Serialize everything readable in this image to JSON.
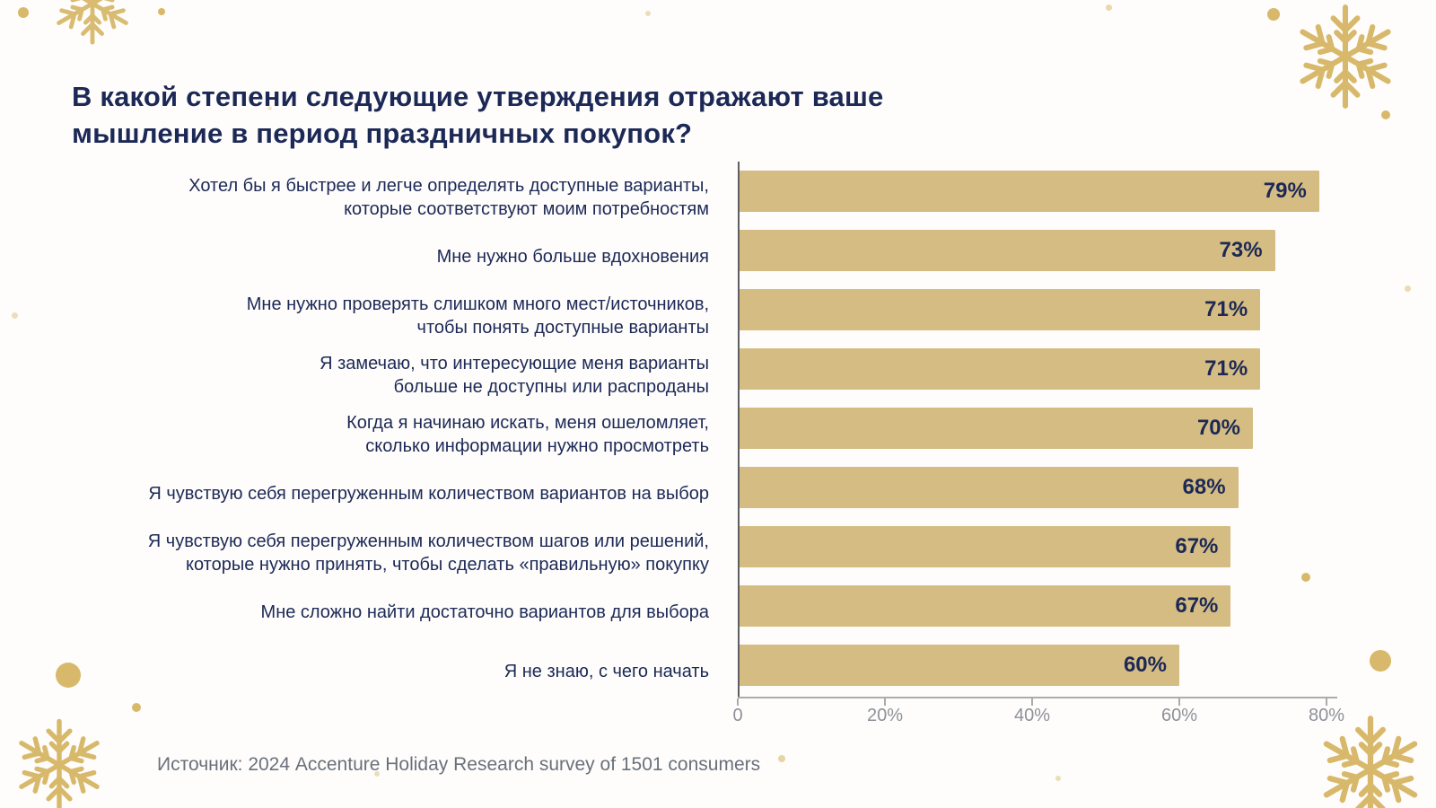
{
  "title": "В какой степени следующие утверждения отражают ваше\nмышление в период праздничных покупок?",
  "source": "Источник: 2024 Accenture Holiday Research survey of 1501 consumers",
  "colors": {
    "navy": "#1c2957",
    "gold": "#d8b96b",
    "bar": "#d5bc82",
    "axis_gray": "#8d9199",
    "text_gray": "#6a707b",
    "background": "#fefdfb"
  },
  "chart_data": {
    "type": "bar",
    "orientation": "horizontal",
    "title": "В какой степени следующие утверждения отражают ваше мышление в период праздничных покупок?",
    "categories": [
      "Хотел бы я быстрее и легче определять доступные варианты,\nкоторые соответствуют моим потребностям",
      "Мне нужно больше вдохновения",
      "Мне нужно проверять слишком много мест/источников,\nчтобы понять доступные варианты",
      "Я замечаю, что интересующие меня варианты\nбольше не доступны или распроданы",
      "Когда я начинаю искать, меня ошеломляет,\nсколько информации нужно просмотреть",
      "Я чувствую себя перегруженным количеством вариантов на выбор",
      "Я чувствую себя перегруженным количеством шагов или решений,\nкоторые нужно принять, чтобы сделать «правильную» покупку",
      "Мне сложно найти достаточно вариантов для выбора",
      "Я не знаю, с чего начать"
    ],
    "values": [
      79,
      73,
      71,
      71,
      70,
      68,
      67,
      67,
      60
    ],
    "value_labels": [
      "79%",
      "73%",
      "71%",
      "71%",
      "70%",
      "68%",
      "67%",
      "67%",
      "60%"
    ],
    "xlabel": "",
    "ylabel": "",
    "xlim": [
      0,
      80
    ],
    "x_ticks": [
      "0",
      "20%",
      "40%",
      "60%",
      "80%"
    ],
    "grid": false,
    "legend": false,
    "bar_color": "#d5bc82",
    "value_label_color": "#1c2957"
  },
  "decorations": {
    "snowflake_icon": "six-armed gold line snowflake",
    "gold_dot_icon": "solid gold circle"
  }
}
